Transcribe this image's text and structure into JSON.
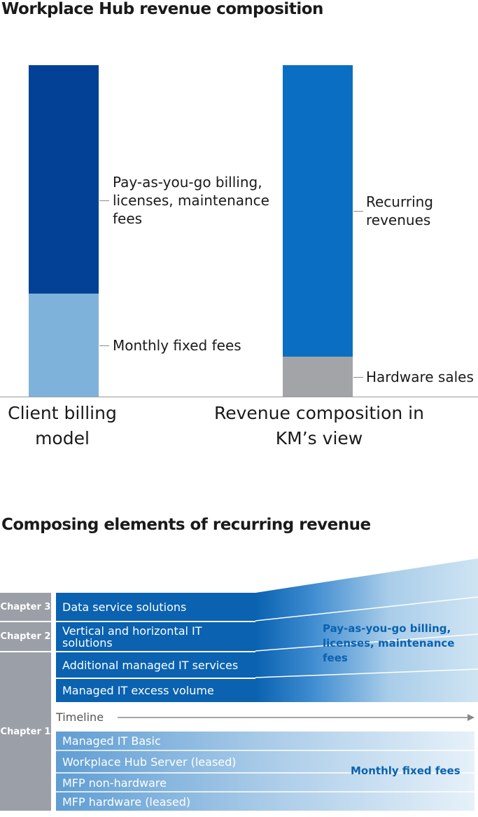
{
  "top_chart": {
    "title": "Workplace Hub revenue composition",
    "bars": [
      {
        "category": "Client billing model",
        "segments": [
          {
            "label": "Pay-as-you-go billing, licenses, maintenance fees",
            "share": 0.69,
            "color": "#034196"
          },
          {
            "label": "Monthly fixed fees",
            "share": 0.31,
            "color": "#7fb2db"
          }
        ]
      },
      {
        "category": "Revenue composition in KM’s view",
        "segments": [
          {
            "label": "Recurring revenues",
            "share": 0.88,
            "color": "#0a6fc2"
          },
          {
            "label": "Hardware sales",
            "share": 0.12,
            "color": "#a3a4a8"
          }
        ]
      }
    ]
  },
  "chart_data": {
    "type": "bar",
    "stacked": true,
    "categories": [
      "Client billing model",
      "Revenue composition in KM’s view"
    ],
    "series": [
      {
        "name": "Pay-as-you-go billing, licenses, maintenance fees",
        "values": [
          0.69,
          null
        ]
      },
      {
        "name": "Monthly fixed fees",
        "values": [
          0.31,
          null
        ]
      },
      {
        "name": "Recurring revenues",
        "values": [
          null,
          0.88
        ]
      },
      {
        "name": "Hardware sales",
        "values": [
          null,
          0.12
        ]
      }
    ],
    "title": "Workplace Hub revenue composition",
    "xlabel": "",
    "ylabel": "",
    "grid": false,
    "legend": "none"
  },
  "bottom": {
    "title": "Composing elements of recurring revenue",
    "chapters": [
      {
        "label": "Chapter 3"
      },
      {
        "label": "Chapter 2"
      },
      {
        "label": "Chapter 1"
      }
    ],
    "recurring_rows": [
      {
        "label": "Data service solutions"
      },
      {
        "label": "Vertical and horizontal IT solutions"
      },
      {
        "label": "Additional managed IT services"
      },
      {
        "label": "Managed IT excess volume"
      }
    ],
    "payg_note": "Pay-as-you-go billing, licenses, maintenance fees",
    "timeline_label": "Timeline",
    "fixed_rows": [
      {
        "label": "Managed IT Basic"
      },
      {
        "label": "Workplace Hub Server (leased)"
      },
      {
        "label": "MFP non-hardware"
      },
      {
        "label": "MFP hardware (leased)"
      }
    ],
    "fixed_note": "Monthly fixed fees",
    "colors": {
      "dark_blue": "#0a62b0",
      "fade_blue": "#c9e0f1",
      "chapter_gray": "#9ba0a8",
      "fixed_blue": "#6aa4d6",
      "fixed_fade": "#e3eff8"
    }
  }
}
